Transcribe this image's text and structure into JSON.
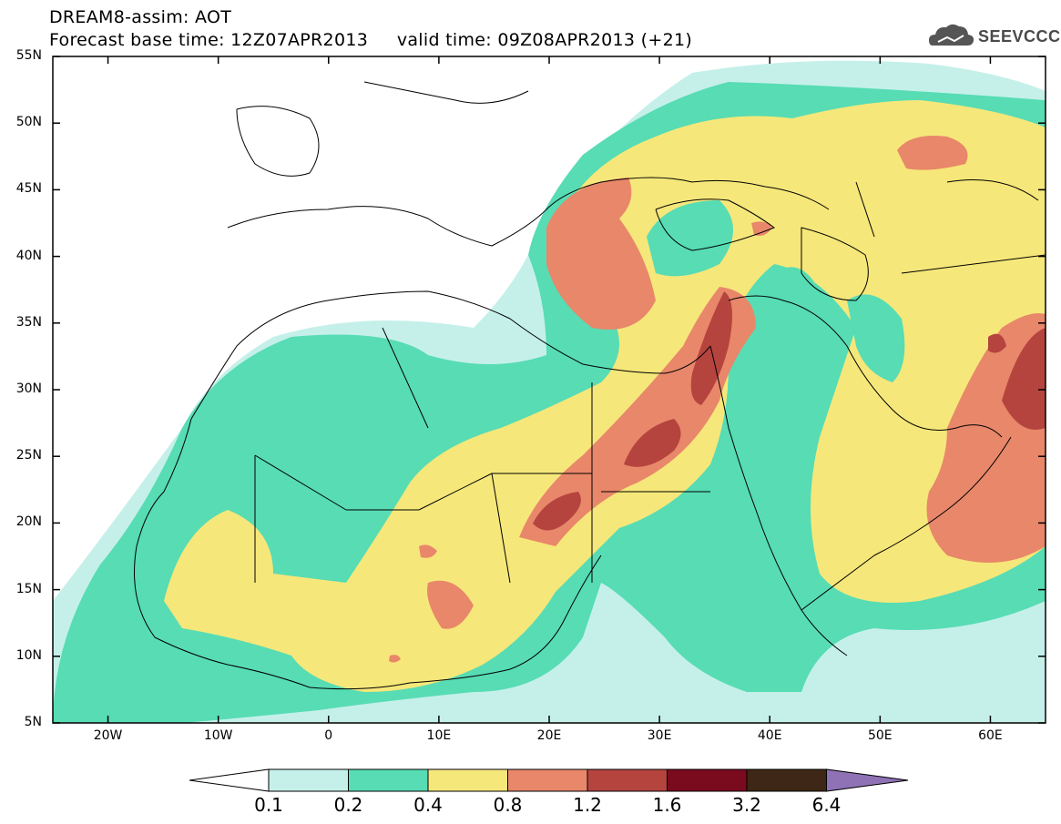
{
  "header": {
    "title_line1": "DREAM8-assim: AOT",
    "title_line2": "Forecast base time: 12Z07APR2013     valid time: 09Z08APR2013 (+21)"
  },
  "logo": {
    "text": "SEEVCCC",
    "icon": "cloud-logo-icon"
  },
  "map": {
    "lat_labels": [
      "55N",
      "50N",
      "45N",
      "40N",
      "35N",
      "30N",
      "25N",
      "20N",
      "15N",
      "10N",
      "5N"
    ],
    "lon_labels": [
      "20W",
      "10W",
      "0",
      "10E",
      "20E",
      "30E",
      "40E",
      "50E",
      "60E"
    ],
    "lat_range": [
      5,
      55
    ],
    "lon_range": [
      -25,
      65
    ],
    "grid": false
  },
  "colorbar": {
    "labels": [
      "0.1",
      "0.2",
      "0.4",
      "0.8",
      "1.2",
      "1.6",
      "3.2",
      "6.4"
    ],
    "colors": [
      "#c5f0ea",
      "#57dcb4",
      "#f6e77a",
      "#e8876a",
      "#b5443f",
      "#7a0b1e",
      "#3e2716",
      "#8e72b5"
    ],
    "under_color": "#ffffff"
  }
}
